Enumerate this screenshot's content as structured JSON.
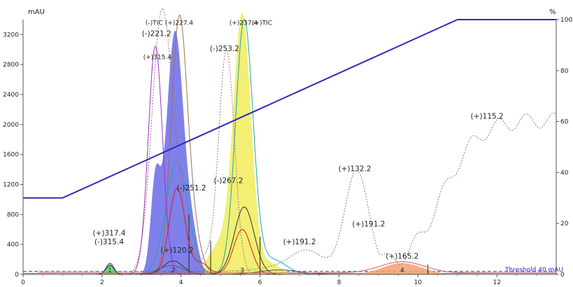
{
  "chart_data": {
    "type": "line",
    "left_axis": {
      "unit": "mAU",
      "ylim": [
        0,
        3400
      ],
      "ticks": [
        0,
        400,
        800,
        1200,
        1600,
        2000,
        2400,
        2800,
        3200
      ]
    },
    "right_axis": {
      "unit": "%",
      "ylim": [
        0,
        100
      ],
      "ticks": [
        0,
        20,
        40,
        60,
        80,
        100
      ]
    },
    "x_axis": {
      "xlim": [
        0,
        13.5
      ],
      "ticks": [
        0,
        2,
        4,
        6,
        8,
        10,
        12
      ]
    },
    "threshold_label": "Threshold 40 mAU",
    "gradient": {
      "name": "%",
      "color": "#2b2bbb",
      "x": [
        0,
        1,
        11,
        13.5
      ],
      "y": [
        30,
        30,
        100,
        100
      ]
    },
    "peaks": [
      {
        "id": "1",
        "rt": 2.2,
        "height": 150,
        "color": "#5ed65e"
      },
      {
        "id": "2",
        "rt": 3.8,
        "height": 3250,
        "color": "#6a6ae8"
      },
      {
        "id": "3",
        "rt": 5.55,
        "height": 3400,
        "color": "#f0ec5a"
      },
      {
        "id": "4",
        "rt": 9.6,
        "height": 150,
        "color": "#f4a070"
      }
    ],
    "annotations": [
      {
        "text": "(+)317.4",
        "x": 2.18,
        "y": 520
      },
      {
        "text": "(-)315.4",
        "x": 2.18,
        "y": 400
      },
      {
        "text": "(-)TIC",
        "x": 3.32,
        "y": 3330
      },
      {
        "text": "(+)227.4",
        "x": 3.95,
        "y": 3330
      },
      {
        "text": "(-)221.2",
        "x": 3.38,
        "y": 3180
      },
      {
        "text": "(+)315.4",
        "x": 3.4,
        "y": 2870
      },
      {
        "text": "(-)253.2",
        "x": 5.1,
        "y": 2980
      },
      {
        "text": "(+)237.4",
        "x": 5.58,
        "y": 3330
      },
      {
        "text": "(+)TIC",
        "x": 6.05,
        "y": 3330
      },
      {
        "text": "(-)251.2",
        "x": 4.26,
        "y": 1120
      },
      {
        "text": "(-)267.2",
        "x": 5.2,
        "y": 1220
      },
      {
        "text": "(+)120.2",
        "x": 3.9,
        "y": 290
      },
      {
        "text": "(+)191.2",
        "x": 7.0,
        "y": 400
      },
      {
        "text": "(+)191.2",
        "x": 8.75,
        "y": 640
      },
      {
        "text": "(+)132.2",
        "x": 8.4,
        "y": 1380
      },
      {
        "text": "(+)115.2",
        "x": 11.75,
        "y": 2080
      },
      {
        "text": "(+)165.2",
        "x": 9.6,
        "y": 210
      }
    ]
  }
}
